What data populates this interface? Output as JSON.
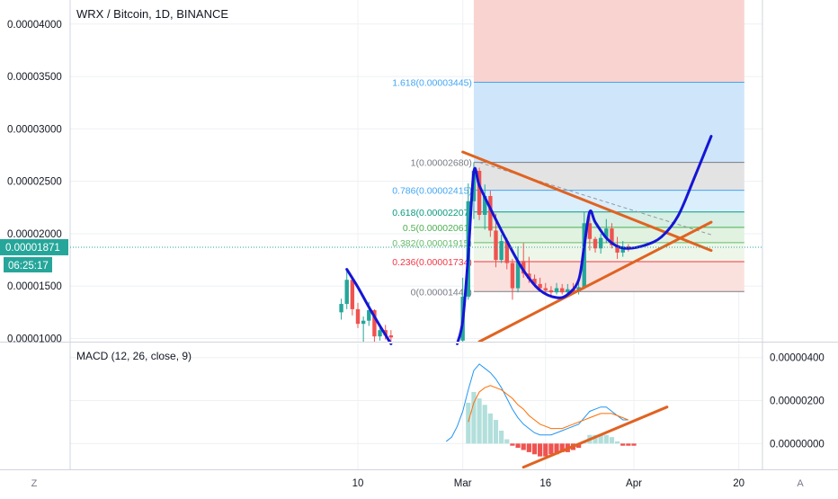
{
  "chart_data": {
    "type": "candlestick",
    "title": "WRX / Bitcoin, 1D, BINANCE",
    "last_price": {
      "label": "0.00001871",
      "countdown": "06:25:17",
      "value": 1.871e-05
    },
    "price_axis": {
      "ylim": [
        9.7e-06,
        4.23e-05
      ],
      "ticks": [
        {
          "label": "0.00004000",
          "value": 4e-05
        },
        {
          "label": "0.00003500",
          "value": 3.5e-05
        },
        {
          "label": "0.00003000",
          "value": 3e-05
        },
        {
          "label": "0.00002500",
          "value": 2.5e-05
        },
        {
          "label": "0.00002000",
          "value": 2e-05
        },
        {
          "label": "0.00001500",
          "value": 1.5e-05
        },
        {
          "label": "0.00001000",
          "value": 1e-05
        }
      ]
    },
    "time_axis": {
      "labels": [
        {
          "label": "10",
          "day": 10
        },
        {
          "label": "Mar",
          "day": 29
        },
        {
          "label": "16",
          "day": 44
        },
        {
          "label": "Apr",
          "day": 60
        },
        {
          "label": "20",
          "day": 79
        }
      ]
    },
    "fibonacci": {
      "levels": [
        {
          "label": "1.618(0.00003445)",
          "ratio": 1.618,
          "value": 3.445e-05,
          "color": "#42a5f5"
        },
        {
          "label": "1(0.00002680)",
          "ratio": 1,
          "value": 2.68e-05,
          "color": "#787b86"
        },
        {
          "label": "0.786(0.00002415)",
          "ratio": 0.786,
          "value": 2.415e-05,
          "color": "#42a5f5"
        },
        {
          "label": "0.618(0.00002207)",
          "ratio": 0.618,
          "value": 2.207e-05,
          "color": "#089981"
        },
        {
          "label": "0.5(0.00002061)",
          "ratio": 0.5,
          "value": 2.061e-05,
          "color": "#4caf50"
        },
        {
          "label": "0.382(0.00001915)",
          "ratio": 0.382,
          "value": 1.915e-05,
          "color": "#66bb6a"
        },
        {
          "label": "0.236(0.00001734)",
          "ratio": 0.236,
          "value": 1.734e-05,
          "color": "#f23645"
        },
        {
          "label": "0(0.00001448)",
          "ratio": 0,
          "value": 1.448e-05,
          "color": "#787b86"
        }
      ],
      "zones": [
        {
          "from": 4.23e-05,
          "to": 3.445e-05,
          "color": "#f9d3d0"
        },
        {
          "from": 3.445e-05,
          "to": 2.68e-05,
          "color": "#cfe5fa"
        },
        {
          "from": 2.68e-05,
          "to": 2.415e-05,
          "color": "#e3e3e3"
        },
        {
          "from": 2.415e-05,
          "to": 2.207e-05,
          "color": "#dbeefc"
        },
        {
          "from": 2.207e-05,
          "to": 2.061e-05,
          "color": "#d7efe4"
        },
        {
          "from": 2.061e-05,
          "to": 1.915e-05,
          "color": "#e1f2e1"
        },
        {
          "from": 1.915e-05,
          "to": 1.734e-05,
          "color": "#edf6e8"
        },
        {
          "from": 1.734e-05,
          "to": 1.448e-05,
          "color": "#fbe1de"
        }
      ],
      "day_start": 31,
      "day_end": 80
    },
    "candles": [
      {
        "day": 7,
        "o": 1.25e-05,
        "h": 1.38e-05,
        "l": 1.18e-05,
        "c": 1.33e-05
      },
      {
        "day": 8,
        "o": 1.33e-05,
        "h": 1.66e-05,
        "l": 1.28e-05,
        "c": 1.56e-05
      },
      {
        "day": 9,
        "o": 1.56e-05,
        "h": 1.58e-05,
        "l": 1.22e-05,
        "c": 1.28e-05
      },
      {
        "day": 10,
        "o": 1.28e-05,
        "h": 1.34e-05,
        "l": 1.1e-05,
        "c": 1.14e-05
      },
      {
        "day": 11,
        "o": 1.14e-05,
        "h": 1.21e-05,
        "l": 9.7e-06,
        "c": 1.17e-05
      },
      {
        "day": 12,
        "o": 1.17e-05,
        "h": 1.35e-05,
        "l": 1.12e-05,
        "c": 1.27e-05
      },
      {
        "day": 13,
        "o": 1.27e-05,
        "h": 1.28e-05,
        "l": 9.7e-06,
        "c": 1.02e-05
      },
      {
        "day": 14,
        "o": 1.02e-05,
        "h": 1.12e-05,
        "l": 9.8e-06,
        "c": 1.08e-05
      },
      {
        "day": 15,
        "o": 1.08e-05,
        "h": 1.13e-05,
        "l": 9.9e-06,
        "c": 1.03e-05
      },
      {
        "day": 16,
        "o": 1.03e-05,
        "h": 1.08e-05,
        "l": 9.7e-06,
        "c": 1.01e-05
      },
      {
        "day": 29,
        "o": 9.8e-06,
        "h": 1.58e-05,
        "l": 9.7e-06,
        "c": 1.4e-05
      },
      {
        "day": 30,
        "o": 1.4e-05,
        "h": 2.48e-05,
        "l": 1.37e-05,
        "c": 2.31e-05
      },
      {
        "day": 31,
        "o": 2.31e-05,
        "h": 2.68e-05,
        "l": 2.14e-05,
        "c": 2.6e-05
      },
      {
        "day": 32,
        "o": 2.6e-05,
        "h": 2.63e-05,
        "l": 2.13e-05,
        "c": 2.18e-05
      },
      {
        "day": 33,
        "o": 2.18e-05,
        "h": 2.47e-05,
        "l": 2.04e-05,
        "c": 2.36e-05
      },
      {
        "day": 34,
        "o": 2.36e-05,
        "h": 2.41e-05,
        "l": 1.97e-05,
        "c": 2.03e-05
      },
      {
        "day": 35,
        "o": 2.03e-05,
        "h": 2.19e-05,
        "l": 1.68e-05,
        "c": 1.75e-05
      },
      {
        "day": 36,
        "o": 1.75e-05,
        "h": 1.99e-05,
        "l": 1.72e-05,
        "c": 1.93e-05
      },
      {
        "day": 37,
        "o": 1.93e-05,
        "h": 1.96e-05,
        "l": 1.66e-05,
        "c": 1.72e-05
      },
      {
        "day": 38,
        "o": 1.72e-05,
        "h": 1.76e-05,
        "l": 1.37e-05,
        "c": 1.48e-05
      },
      {
        "day": 39,
        "o": 1.48e-05,
        "h": 1.88e-05,
        "l": 1.44e-05,
        "c": 1.74e-05
      },
      {
        "day": 40,
        "o": 1.74e-05,
        "h": 1.91e-05,
        "l": 1.58e-05,
        "c": 1.62e-05
      },
      {
        "day": 41,
        "o": 1.62e-05,
        "h": 1.78e-05,
        "l": 1.53e-05,
        "c": 1.57e-05
      },
      {
        "day": 42,
        "o": 1.57e-05,
        "h": 1.61e-05,
        "l": 1.49e-05,
        "c": 1.52e-05
      },
      {
        "day": 43,
        "o": 1.52e-05,
        "h": 1.58e-05,
        "l": 1.45e-05,
        "c": 1.48e-05
      },
      {
        "day": 44,
        "o": 1.48e-05,
        "h": 1.53e-05,
        "l": 1.43e-05,
        "c": 1.46e-05
      },
      {
        "day": 45,
        "o": 1.46e-05,
        "h": 1.5e-05,
        "l": 1.41e-05,
        "c": 1.44e-05
      },
      {
        "day": 46,
        "o": 1.44e-05,
        "h": 1.53e-05,
        "l": 1.42e-05,
        "c": 1.48e-05
      },
      {
        "day": 47,
        "o": 1.48e-05,
        "h": 1.52e-05,
        "l": 1.42e-05,
        "c": 1.44e-05
      },
      {
        "day": 48,
        "o": 1.44e-05,
        "h": 1.52e-05,
        "l": 1.41e-05,
        "c": 1.47e-05
      },
      {
        "day": 49,
        "o": 1.47e-05,
        "h": 1.53e-05,
        "l": 1.43e-05,
        "c": 1.45e-05
      },
      {
        "day": 50,
        "o": 1.45e-05,
        "h": 1.54e-05,
        "l": 1.42e-05,
        "c": 1.49e-05
      },
      {
        "day": 51,
        "o": 1.49e-05,
        "h": 2.21e-05,
        "l": 1.47e-05,
        "c": 2.1e-05
      },
      {
        "day": 52,
        "o": 2.1e-05,
        "h": 2.22e-05,
        "l": 1.84e-05,
        "c": 1.95e-05
      },
      {
        "day": 53,
        "o": 1.95e-05,
        "h": 1.97e-05,
        "l": 1.82e-05,
        "c": 1.86e-05
      },
      {
        "day": 54,
        "o": 1.86e-05,
        "h": 2e-05,
        "l": 1.81e-05,
        "c": 1.96e-05
      },
      {
        "day": 55,
        "o": 1.96e-05,
        "h": 2.14e-05,
        "l": 1.91e-05,
        "c": 2.05e-05
      },
      {
        "day": 56,
        "o": 2.05e-05,
        "h": 2.1e-05,
        "l": 1.86e-05,
        "c": 1.89e-05
      },
      {
        "day": 57,
        "o": 1.89e-05,
        "h": 1.97e-05,
        "l": 1.76e-05,
        "c": 1.82e-05
      },
      {
        "day": 58,
        "o": 1.82e-05,
        "h": 1.93e-05,
        "l": 1.78e-05,
        "c": 1.88e-05
      },
      {
        "day": 59,
        "o": 1.88e-05,
        "h": 1.9e-05,
        "l": 1.83e-05,
        "c": 1.87e-05
      }
    ],
    "drawings": {
      "cup_curves": [
        {
          "color": "#1515d6",
          "points": [
            [
              8,
              1.66e-05
            ],
            [
              10,
              1.49e-05
            ],
            [
              12,
              1.3e-05
            ],
            [
              14,
              1.12e-05
            ],
            [
              16,
              9.5e-06
            ]
          ]
        },
        {
          "color": "#1515d6",
          "points": [
            [
              28,
              9.5e-06
            ],
            [
              29,
              1.17e-05
            ],
            [
              30,
              1.8e-05
            ],
            [
              31,
              2.59e-05
            ],
            [
              32,
              2.46e-05
            ],
            [
              34,
              2.24e-05
            ],
            [
              37,
              1.93e-05
            ],
            [
              40,
              1.65e-05
            ],
            [
              43,
              1.46e-05
            ],
            [
              46,
              1.39e-05
            ],
            [
              48,
              1.42e-05
            ],
            [
              50,
              1.56e-05
            ],
            [
              51,
              1.88e-05
            ],
            [
              52,
              2.21e-05
            ],
            [
              53,
              2.11e-05
            ],
            [
              55,
              1.96e-05
            ],
            [
              57,
              1.88e-05
            ],
            [
              59,
              1.86e-05
            ],
            [
              62,
              1.89e-05
            ],
            [
              65,
              1.97e-05
            ],
            [
              68,
              2.17e-05
            ],
            [
              71,
              2.54e-05
            ],
            [
              74,
              2.93e-05
            ]
          ]
        }
      ],
      "trendlines": [
        {
          "color": "#e06321",
          "x1": 29,
          "y1": 2.78e-05,
          "x2": 74,
          "y2": 1.84e-05
        },
        {
          "color": "#e06321",
          "x1": 32,
          "y1": 9.7e-06,
          "x2": 74,
          "y2": 2.11e-05
        }
      ],
      "dashed_line": {
        "color": "#9598a1",
        "x1": 32,
        "y1": 2.68e-05,
        "x2": 74,
        "y2": 1.99e-05
      }
    },
    "macd": {
      "label": "MACD (12, 26, close, 9)",
      "ylim": [
        -1.2e-06,
        4.7e-06
      ],
      "ticks": [
        {
          "label": "0.00000400",
          "value": 4e-06
        },
        {
          "label": "0.00000200",
          "value": 2e-06
        },
        {
          "label": "0.00000000",
          "value": 0
        }
      ],
      "macd_color": "#2196f3",
      "signal_color": "#ff6d00",
      "histogram": [
        {
          "day": 30,
          "value": 1.9e-06
        },
        {
          "day": 31,
          "value": 2.4e-06
        },
        {
          "day": 32,
          "value": 2.1e-06
        },
        {
          "day": 33,
          "value": 1.8e-06
        },
        {
          "day": 34,
          "value": 1.4e-06
        },
        {
          "day": 35,
          "value": 1.1e-06
        },
        {
          "day": 36,
          "value": 6e-07
        },
        {
          "day": 37,
          "value": 2e-07
        },
        {
          "day": 38,
          "value": -1e-07
        },
        {
          "day": 39,
          "value": -2e-07
        },
        {
          "day": 40,
          "value": -3e-07
        },
        {
          "day": 41,
          "value": -4e-07
        },
        {
          "day": 42,
          "value": -5e-07
        },
        {
          "day": 43,
          "value": -6e-07
        },
        {
          "day": 44,
          "value": -6e-07
        },
        {
          "day": 45,
          "value": -5e-07
        },
        {
          "day": 46,
          "value": -5e-07
        },
        {
          "day": 47,
          "value": -4e-07
        },
        {
          "day": 48,
          "value": -4e-07
        },
        {
          "day": 49,
          "value": -3e-07
        },
        {
          "day": 50,
          "value": -2e-07
        },
        {
          "day": 51,
          "value": 1e-07
        },
        {
          "day": 52,
          "value": 4e-07
        },
        {
          "day": 53,
          "value": 4e-07
        },
        {
          "day": 54,
          "value": 4e-07
        },
        {
          "day": 55,
          "value": 4e-07
        },
        {
          "day": 56,
          "value": 3e-07
        },
        {
          "day": 57,
          "value": 1e-07
        },
        {
          "day": 58,
          "value": -1e-07
        },
        {
          "day": 59,
          "value": -1e-07
        },
        {
          "day": 60,
          "value": -1e-07
        }
      ],
      "macd_line": [
        [
          26,
          1e-07
        ],
        [
          27,
          3e-07
        ],
        [
          28,
          8e-07
        ],
        [
          29,
          1.5e-06
        ],
        [
          30,
          2.5e-06
        ],
        [
          31,
          3.4e-06
        ],
        [
          32,
          3.7e-06
        ],
        [
          33,
          3.5e-06
        ],
        [
          34,
          3.3e-06
        ],
        [
          35,
          3e-06
        ],
        [
          36,
          2.6e-06
        ],
        [
          37,
          2.1e-06
        ],
        [
          38,
          1.6e-06
        ],
        [
          39,
          1.2e-06
        ],
        [
          40,
          9e-07
        ],
        [
          41,
          7e-07
        ],
        [
          42,
          5e-07
        ],
        [
          43,
          4e-07
        ],
        [
          44,
          4e-07
        ],
        [
          45,
          4e-07
        ],
        [
          46,
          5e-07
        ],
        [
          47,
          6e-07
        ],
        [
          48,
          7e-07
        ],
        [
          49,
          8e-07
        ],
        [
          50,
          9e-07
        ],
        [
          51,
          1.2e-06
        ],
        [
          52,
          1.5e-06
        ],
        [
          53,
          1.6e-06
        ],
        [
          54,
          1.7e-06
        ],
        [
          55,
          1.7e-06
        ],
        [
          56,
          1.5e-06
        ],
        [
          57,
          1.3e-06
        ],
        [
          58,
          1.1e-06
        ],
        [
          59,
          1.1e-06
        ]
      ],
      "signal_line": [
        [
          30,
          1e-06
        ],
        [
          31,
          1.9e-06
        ],
        [
          32,
          2.4e-06
        ],
        [
          33,
          2.6e-06
        ],
        [
          34,
          2.7e-06
        ],
        [
          35,
          2.6e-06
        ],
        [
          36,
          2.5e-06
        ],
        [
          37,
          2.3e-06
        ],
        [
          38,
          2.1e-06
        ],
        [
          39,
          1.8e-06
        ],
        [
          40,
          1.6e-06
        ],
        [
          41,
          1.3e-06
        ],
        [
          42,
          1.1e-06
        ],
        [
          43,
          9e-07
        ],
        [
          44,
          8e-07
        ],
        [
          45,
          7e-07
        ],
        [
          46,
          7e-07
        ],
        [
          47,
          7e-07
        ],
        [
          48,
          8e-07
        ],
        [
          49,
          9e-07
        ],
        [
          50,
          1e-06
        ],
        [
          51,
          1.1e-06
        ],
        [
          52,
          1.2e-06
        ],
        [
          53,
          1.3e-06
        ],
        [
          54,
          1.4e-06
        ],
        [
          55,
          1.4e-06
        ],
        [
          56,
          1.4e-06
        ],
        [
          57,
          1.3e-06
        ],
        [
          58,
          1.2e-06
        ],
        [
          59,
          1.1e-06
        ]
      ],
      "trendline": {
        "color": "#e06321",
        "x1": 40,
        "y1": -1.1e-06,
        "x2": 66,
        "y2": 1.7e-06
      }
    },
    "bottom_buttons": {
      "left": "Z",
      "right": "A"
    },
    "colors": {
      "up": "#26a69a",
      "down": "#ef5350",
      "price_tag": "#26a69a"
    }
  }
}
